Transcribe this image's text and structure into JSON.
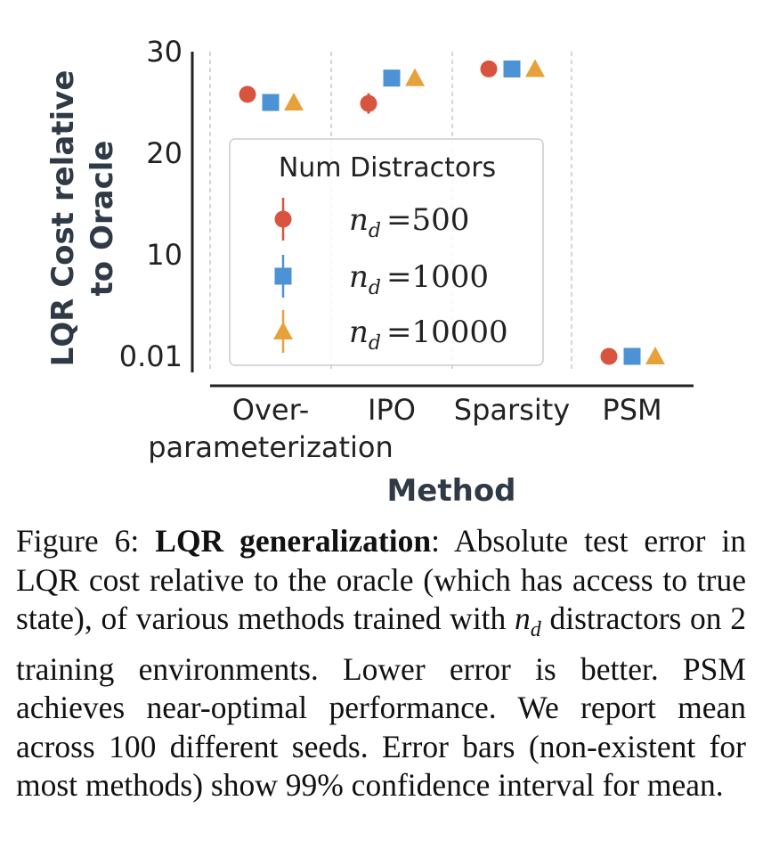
{
  "chart_data": {
    "type": "scatter",
    "ylabel_lines": [
      "LQR Cost relative",
      "to Oracle"
    ],
    "xlabel": "Method",
    "categories": [
      "Over-parameterization",
      "IPO",
      "Sparsity",
      "PSM"
    ],
    "category_label_lines": [
      [
        "Over-",
        "parameterization"
      ],
      [
        "IPO"
      ],
      [
        "Sparsity"
      ],
      [
        "PSM"
      ]
    ],
    "yticks": [
      "0.01",
      "10",
      "20",
      "30"
    ],
    "ylim": [
      0.01,
      30
    ],
    "legend": {
      "title": "Num Distractors",
      "placement": "center-left",
      "entries": [
        {
          "var": "n",
          "sub": "d",
          "eq": "=500"
        },
        {
          "var": "n",
          "sub": "d",
          "eq": "=1000"
        },
        {
          "var": "n",
          "sub": "d",
          "eq": "=10000"
        }
      ]
    },
    "series": [
      {
        "name": "n_d=500",
        "marker": "circle",
        "color": "#d9543f",
        "values": [
          25.8,
          24.9,
          28.3,
          0.01
        ]
      },
      {
        "name": "n_d=1000",
        "marker": "square",
        "color": "#4d92d4",
        "values": [
          25.0,
          27.4,
          28.3,
          0.01
        ]
      },
      {
        "name": "n_d=10000",
        "marker": "triangle",
        "color": "#e7a13b",
        "values": [
          25.0,
          27.4,
          28.3,
          0.01
        ]
      }
    ],
    "error_bars": [
      {
        "series": 0,
        "category": 1,
        "low": 23.9,
        "high": 25.9
      }
    ],
    "grid": "vertical-dashed"
  },
  "caption": {
    "label": "Figure 6:",
    "title": "LQR generalization",
    "text_1": ": Absolute test error in LQR cost relative to the oracle (which has access to true state), of various methods trained with ",
    "var": "n",
    "sub": "d",
    "text_2": " distractors on 2 training environments. Lower error is better. PSM achieves near-optimal performance. We report mean across 100 different seeds. Error bars (non-existent for most methods) show 99% confidence interval for mean."
  }
}
